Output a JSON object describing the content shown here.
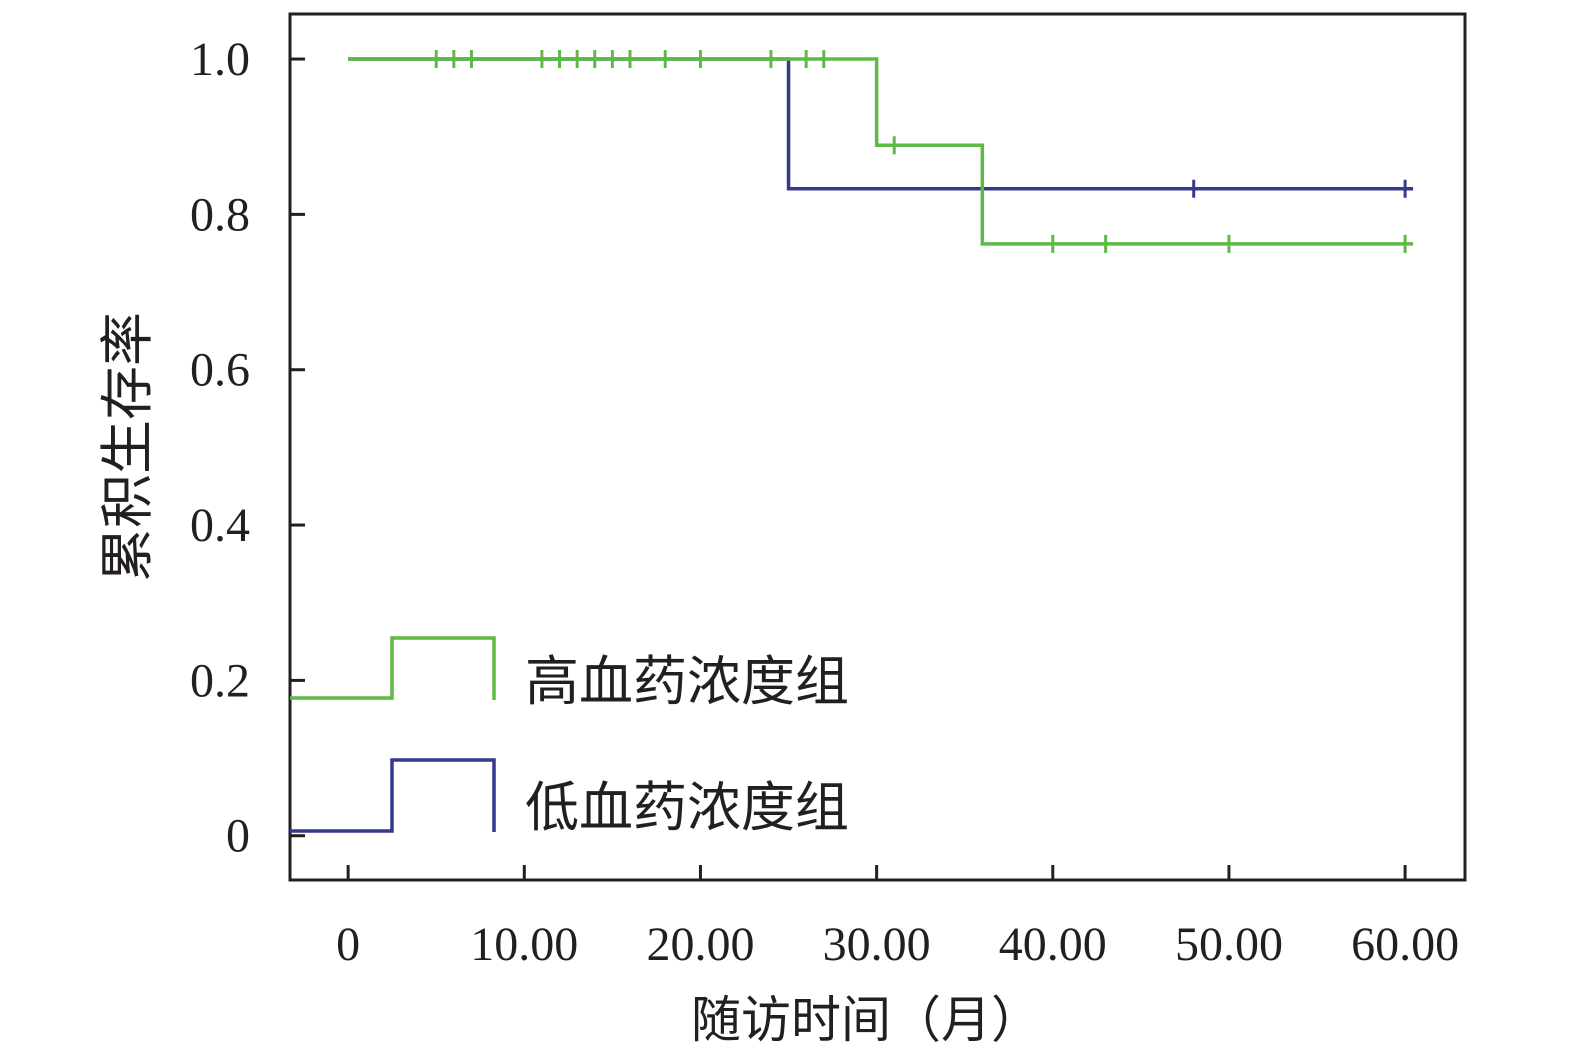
{
  "chart_data": {
    "type": "line",
    "step": true,
    "xlabel": "随访时间（月）",
    "ylabel": "累积生存率",
    "xlim": [
      -3.3,
      63.4
    ],
    "ylim": [
      -0.057,
      1.058
    ],
    "xticks": [
      0,
      10,
      20,
      30,
      40,
      50,
      60
    ],
    "xtick_labels": [
      "0",
      "10.00",
      "20.00",
      "30.00",
      "40.00",
      "50.00",
      "60.00"
    ],
    "yticks": [
      0,
      0.2,
      0.4,
      0.6,
      0.8,
      1.0
    ],
    "ytick_labels": [
      "0",
      "0.2",
      "0.4",
      "0.6",
      "0.8",
      "1.0"
    ],
    "grid": false,
    "legend_position": "bottom-left",
    "series": [
      {
        "name": "高血药浓度组",
        "color": "#5EB946",
        "x": [
          0,
          30,
          36
        ],
        "y": [
          1.0,
          0.889,
          0.762
        ],
        "censored_x": [
          5,
          6,
          7,
          11,
          12,
          13,
          14,
          15,
          16,
          18,
          20,
          24,
          26,
          27,
          31,
          40,
          43,
          50,
          60
        ]
      },
      {
        "name": "低血药浓度组",
        "color": "#333A8C",
        "x": [
          0,
          25
        ],
        "y": [
          1.0,
          0.833
        ],
        "censored_x": [
          48,
          60
        ]
      }
    ]
  }
}
